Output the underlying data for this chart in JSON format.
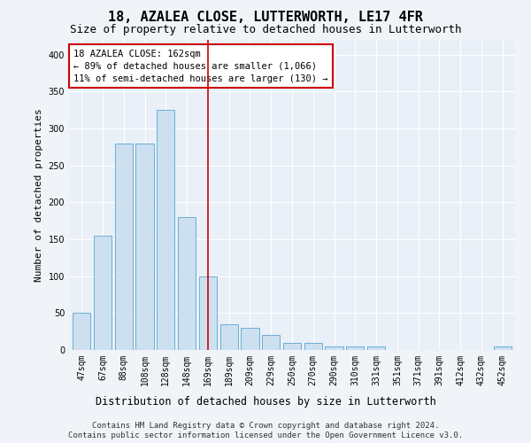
{
  "title": "18, AZALEA CLOSE, LUTTERWORTH, LE17 4FR",
  "subtitle": "Size of property relative to detached houses in Lutterworth",
  "xlabel": "Distribution of detached houses by size in Lutterworth",
  "ylabel": "Number of detached properties",
  "bar_labels": [
    "47sqm",
    "67sqm",
    "88sqm",
    "108sqm",
    "128sqm",
    "148sqm",
    "169sqm",
    "189sqm",
    "209sqm",
    "229sqm",
    "250sqm",
    "270sqm",
    "290sqm",
    "310sqm",
    "331sqm",
    "351sqm",
    "371sqm",
    "391sqm",
    "412sqm",
    "432sqm",
    "452sqm"
  ],
  "bar_heights": [
    50,
    155,
    280,
    280,
    325,
    180,
    100,
    35,
    30,
    20,
    10,
    10,
    5,
    5,
    5,
    0,
    0,
    0,
    0,
    0,
    5
  ],
  "bar_color": "#cce0f0",
  "bar_edge_color": "#6aaed6",
  "vline_x_index": 6,
  "vline_color": "#cc0000",
  "annotation_line1": "18 AZALEA CLOSE: 162sqm",
  "annotation_line2": "← 89% of detached houses are smaller (1,066)",
  "annotation_line3": "11% of semi-detached houses are larger (130) →",
  "annotation_box_color": "#ffffff",
  "annotation_box_edge_color": "#cc0000",
  "ylim": [
    0,
    420
  ],
  "yticks": [
    0,
    50,
    100,
    150,
    200,
    250,
    300,
    350,
    400
  ],
  "background_color": "#eaf0f8",
  "grid_color": "#ffffff",
  "footer_line1": "Contains HM Land Registry data © Crown copyright and database right 2024.",
  "footer_line2": "Contains public sector information licensed under the Open Government Licence v3.0.",
  "title_fontsize": 11,
  "subtitle_fontsize": 9,
  "xlabel_fontsize": 8.5,
  "ylabel_fontsize": 8,
  "tick_fontsize": 7,
  "annotation_fontsize": 7.5,
  "footer_fontsize": 6.5
}
